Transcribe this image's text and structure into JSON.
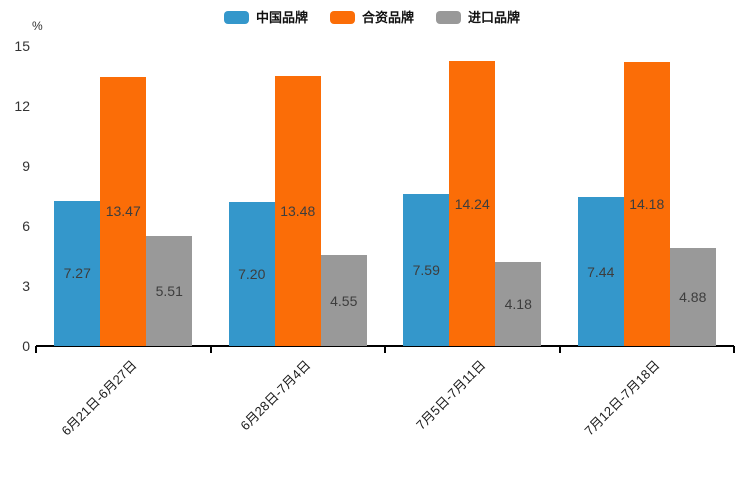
{
  "chart_data": {
    "type": "bar",
    "title": "",
    "xlabel": "",
    "ylabel": "%",
    "ylim": [
      0,
      15
    ],
    "yticks": [
      0,
      3,
      6,
      9,
      12,
      15
    ],
    "grid": false,
    "legend_position": "top-center",
    "background": "#ffffff",
    "axis_color": "#000000",
    "value_label_color": "#3d3d3d",
    "categories": [
      "6月21日-6月27日",
      "6月28日-7月4日",
      "7月5日-7月11日",
      "7月12日-7月18日"
    ],
    "series": [
      {
        "name": "中国品牌",
        "color": "#3497CB",
        "values": [
          7.27,
          7.2,
          7.59,
          7.44
        ],
        "value_labels": [
          "7.27",
          "7.20",
          "7.59",
          "7.44"
        ]
      },
      {
        "name": "合资品牌",
        "color": "#FB6D07",
        "values": [
          13.47,
          13.48,
          14.24,
          14.18
        ],
        "value_labels": [
          "13.47",
          "13.48",
          "14.24",
          "14.18"
        ]
      },
      {
        "name": "进口品牌",
        "color": "#999999",
        "values": [
          5.51,
          4.55,
          4.18,
          4.88
        ],
        "value_labels": [
          "5.51",
          "4.55",
          "4.18",
          "4.88"
        ]
      }
    ]
  }
}
